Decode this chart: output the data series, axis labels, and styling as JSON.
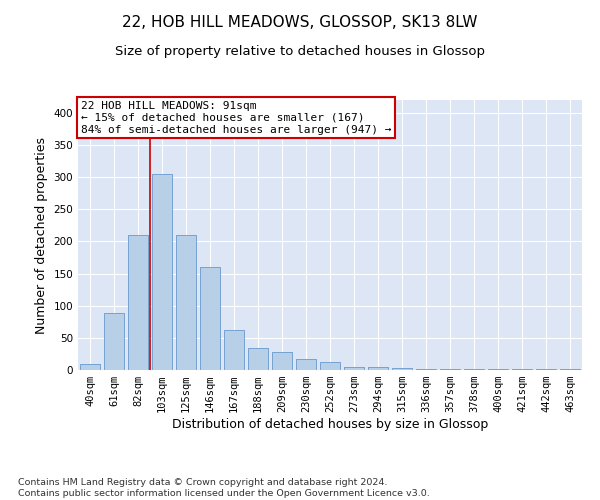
{
  "title1": "22, HOB HILL MEADOWS, GLOSSOP, SK13 8LW",
  "title2": "Size of property relative to detached houses in Glossop",
  "xlabel": "Distribution of detached houses by size in Glossop",
  "ylabel": "Number of detached properties",
  "categories": [
    "40sqm",
    "61sqm",
    "82sqm",
    "103sqm",
    "125sqm",
    "146sqm",
    "167sqm",
    "188sqm",
    "209sqm",
    "230sqm",
    "252sqm",
    "273sqm",
    "294sqm",
    "315sqm",
    "336sqm",
    "357sqm",
    "378sqm",
    "400sqm",
    "421sqm",
    "442sqm",
    "463sqm"
  ],
  "values": [
    10,
    88,
    210,
    305,
    210,
    160,
    62,
    35,
    28,
    17,
    12,
    5,
    5,
    3,
    2,
    2,
    2,
    2,
    1,
    1,
    2
  ],
  "bar_color": "#b8cfe8",
  "bar_edge_color": "#6699cc",
  "background_color": "#dce6f5",
  "red_line_x": 2.5,
  "annotation_text": "22 HOB HILL MEADOWS: 91sqm\n← 15% of detached houses are smaller (167)\n84% of semi-detached houses are larger (947) →",
  "annotation_box_color": "#ffffff",
  "annotation_box_edge": "#cc0000",
  "ylim": [
    0,
    420
  ],
  "yticks": [
    0,
    50,
    100,
    150,
    200,
    250,
    300,
    350,
    400
  ],
  "footnote": "Contains HM Land Registry data © Crown copyright and database right 2024.\nContains public sector information licensed under the Open Government Licence v3.0.",
  "title_fontsize": 11,
  "subtitle_fontsize": 9.5,
  "axis_label_fontsize": 9,
  "tick_fontsize": 7.5,
  "footnote_fontsize": 6.8,
  "annot_fontsize": 8.0
}
